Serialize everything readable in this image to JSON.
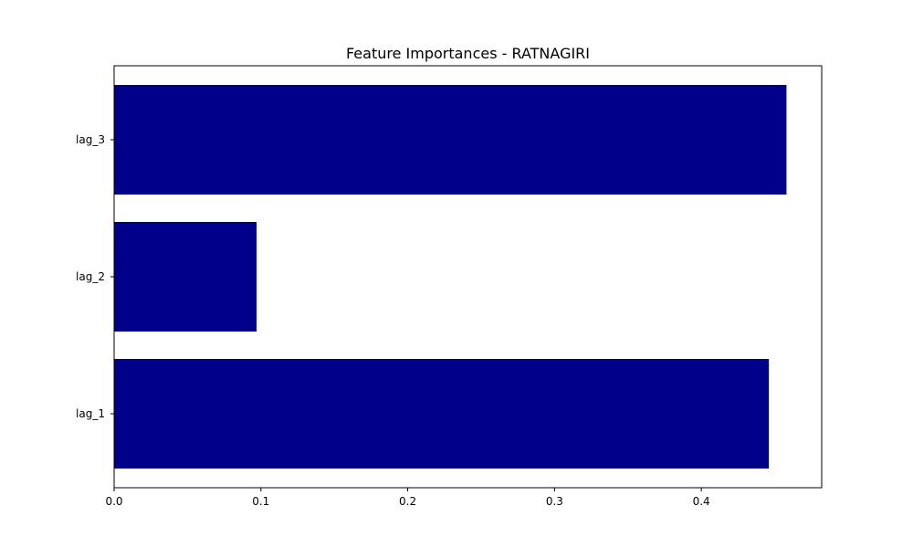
{
  "chart_data": {
    "type": "bar",
    "orientation": "horizontal",
    "title": "Feature Importances - RATNAGIRI",
    "xlabel": "",
    "ylabel": "",
    "categories": [
      "lag_1",
      "lag_2",
      "lag_3"
    ],
    "values": [
      0.446,
      0.097,
      0.458
    ],
    "xlim": [
      0,
      0.482
    ],
    "xticks": [
      0.0,
      0.1,
      0.2,
      0.3,
      0.4
    ],
    "xtick_labels": [
      "0.0",
      "0.1",
      "0.2",
      "0.3",
      "0.4"
    ],
    "grid": false,
    "bar_color": "#00008b"
  }
}
